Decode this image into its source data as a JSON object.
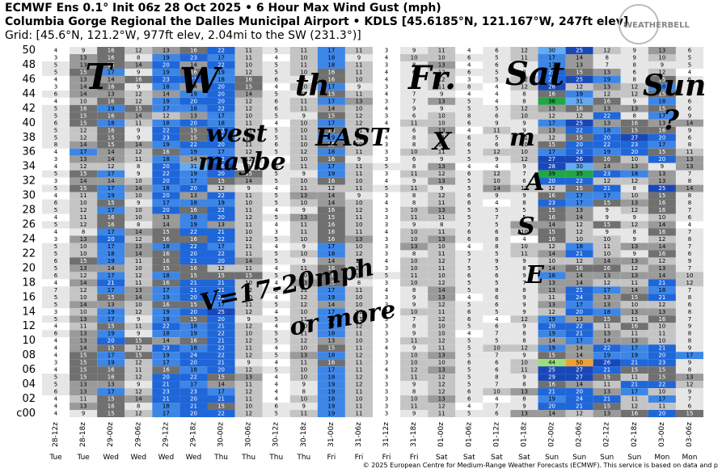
{
  "chart_data": {
    "type": "heatmap",
    "title": "ECMWF Ens 0.1° Init 06z 28 Oct 2025 • 6 Hour Max Wind Gust (mph)",
    "location": "Columbia Gorge Regional the Dalles Municipal Airport • KDLS [45.6185°N, 121.167°W, 247ft elev]",
    "grid_info": "Grid: [45.6°N, 121.2°W, 977ft elev, 2.04mi to the SW (231.3°)]",
    "logo": "WEATHERBELL",
    "footer": "© 2025 European Centre for Medium-Range Weather Forecasts (ECMWF). This service is based on data and p",
    "x": [
      "28-12z",
      "28-18z",
      "29-00z",
      "29-06z",
      "29-12z",
      "29-18z",
      "30-00z",
      "30-06z",
      "30-12z",
      "30-18z",
      "31-00z",
      "31-06z",
      "31-12z",
      "31-18z",
      "01-00z",
      "01-06z",
      "01-12z",
      "01-18z",
      "02-00z",
      "02-06z",
      "02-12z",
      "02-18z",
      "03-00z",
      "03-06z"
    ],
    "x_days": [
      "Tue",
      "Tue",
      "Wed",
      "Wed",
      "Wed",
      "Wed",
      "Thu",
      "Thu",
      "Thu",
      "Thu",
      "Fri",
      "Fri",
      "Fri",
      "Fri",
      "Sat",
      "Sat",
      "Sat",
      "Sat",
      "Sun",
      "Sun",
      "Sun",
      "Sun",
      "Mon",
      "Mon"
    ],
    "y": [
      "50",
      null,
      "48",
      null,
      "46",
      null,
      "44",
      null,
      "42",
      null,
      "40",
      null,
      "38",
      null,
      "36",
      null,
      "34",
      null,
      "32",
      null,
      "30",
      null,
      "28",
      null,
      "26",
      null,
      "24",
      null,
      "22",
      null,
      "20",
      null,
      "18",
      null,
      "16",
      null,
      "14",
      null,
      "12",
      null,
      "10",
      null,
      "08",
      null,
      "06",
      null,
      "04",
      null,
      "02",
      null,
      "c00"
    ],
    "colorscale": [
      {
        "min": 0,
        "color": "#ffffff",
        "text": "#000000"
      },
      {
        "min": 5,
        "color": "#e6e6e6",
        "text": "#000000"
      },
      {
        "min": 10,
        "color": "#c4c4c4",
        "text": "#000000"
      },
      {
        "min": 13,
        "color": "#9a9a9a",
        "text": "#000000"
      },
      {
        "min": 15,
        "color": "#707070",
        "text": "#ffffff"
      },
      {
        "min": 17,
        "color": "#3d86e6",
        "text": "#000000"
      },
      {
        "min": 20,
        "color": "#1f66d9",
        "text": "#ffffff"
      },
      {
        "min": 25,
        "color": "#1848b8",
        "text": "#ffffff"
      },
      {
        "min": 30,
        "color": "#66aaf0",
        "text": "#000000"
      },
      {
        "min": 35,
        "color": "#22a644",
        "text": "#000000"
      },
      {
        "min": 40,
        "color": "#99e07a",
        "text": "#000000"
      },
      {
        "min": 45,
        "color": "#f0e040",
        "text": "#000000"
      },
      {
        "min": 50,
        "color": "#f0a030",
        "text": "#000000"
      }
    ],
    "values": [
      [
        4,
        9,
        16,
        12,
        13,
        16,
        22,
        11,
        5,
        11,
        17,
        11,
        3,
        9,
        11,
        4,
        6,
        12,
        30,
        25,
        12,
        9,
        13,
        6
      ],
      [
        3,
        13,
        16,
        8,
        19,
        23,
        17,
        11,
        4,
        10,
        18,
        9,
        4,
        10,
        10,
        6,
        5,
        11,
        17,
        14,
        8,
        9,
        10,
        5
      ],
      [
        5,
        13,
        15,
        14,
        20,
        14,
        22,
        10,
        5,
        11,
        18,
        11,
        3,
        8,
        13,
        4,
        6,
        9,
        17,
        13,
        7,
        8,
        9,
        5
      ],
      [
        5,
        15,
        17,
        9,
        19,
        16,
        19,
        12,
        5,
        10,
        16,
        11,
        4,
        6,
        12,
        6,
        5,
        8,
        22,
        15,
        13,
        6,
        12,
        4
      ],
      [
        4,
        13,
        14,
        16,
        23,
        21,
        18,
        16,
        6,
        9,
        16,
        10,
        4,
        8,
        12,
        3,
        5,
        12,
        24,
        25,
        19,
        8,
        15,
        6
      ],
      [
        3,
        14,
        16,
        9,
        18,
        14,
        20,
        15,
        4,
        10,
        17,
        9,
        3,
        6,
        11,
        8,
        4,
        12,
        28,
        12,
        13,
        12,
        18,
        7
      ],
      [
        6,
        14,
        13,
        12,
        14,
        19,
        20,
        14,
        5,
        9,
        15,
        11,
        4,
        7,
        9,
        4,
        4,
        8,
        16,
        19,
        12,
        12,
        15,
        9
      ],
      [
        4,
        10,
        16,
        12,
        19,
        20,
        20,
        12,
        6,
        11,
        17,
        13,
        3,
        7,
        13,
        5,
        4,
        8,
        36,
        31,
        16,
        9,
        18,
        6
      ],
      [
        5,
        16,
        19,
        15,
        17,
        18,
        22,
        12,
        6,
        11,
        14,
        10,
        4,
        9,
        9,
        5,
        5,
        12,
        13,
        16,
        13,
        13,
        15,
        6
      ],
      [
        5,
        15,
        16,
        14,
        12,
        13,
        17,
        10,
        5,
        9,
        15,
        12,
        3,
        6,
        10,
        8,
        6,
        10,
        12,
        12,
        22,
        8,
        17,
        9
      ],
      [
        6,
        15,
        18,
        11,
        18,
        20,
        18,
        11,
        4,
        10,
        17,
        12,
        4,
        11,
        10,
        6,
        9,
        9,
        17,
        25,
        13,
        16,
        13,
        14
      ],
      [
        5,
        12,
        16,
        9,
        22,
        15,
        22,
        11,
        5,
        10,
        16,
        11,
        3,
        6,
        13,
        4,
        11,
        9,
        13,
        22,
        18,
        15,
        16,
        9
      ],
      [
        5,
        12,
        15,
        9,
        23,
        15,
        21,
        10,
        5,
        11,
        19,
        12,
        4,
        8,
        11,
        6,
        5,
        11,
        12,
        15,
        20,
        27,
        20,
        6
      ],
      [
        8,
        14,
        15,
        14,
        19,
        22,
        20,
        11,
        6,
        10,
        15,
        10,
        3,
        8,
        12,
        6,
        6,
        10,
        15,
        20,
        22,
        23,
        17,
        8
      ],
      [
        4,
        17,
        14,
        12,
        16,
        19,
        17,
        12,
        5,
        12,
        18,
        11,
        3,
        10,
        11,
        5,
        12,
        10,
        17,
        23,
        19,
        20,
        15,
        11
      ],
      [
        3,
        13,
        14,
        11,
        18,
        14,
        22,
        12,
        4,
        10,
        16,
        9,
        3,
        6,
        9,
        5,
        9,
        12,
        27,
        26,
        16,
        10,
        20,
        13
      ],
      [
        4,
        12,
        12,
        8,
        20,
        31,
        26,
        9,
        6,
        11,
        17,
        11,
        5,
        8,
        13,
        4,
        4,
        9,
        28,
        30,
        14,
        13,
        9,
        13
      ],
      [
        5,
        15,
        17,
        9,
        22,
        19,
        20,
        15,
        5,
        9,
        19,
        11,
        3,
        11,
        12,
        6,
        12,
        7,
        39,
        35,
        23,
        18,
        13,
        7
      ],
      [
        3,
        14,
        14,
        10,
        20,
        17,
        15,
        14,
        5,
        10,
        16,
        10,
        4,
        9,
        13,
        5,
        10,
        6,
        20,
        22,
        12,
        12,
        13,
        8
      ],
      [
        5,
        15,
        17,
        14,
        18,
        20,
        12,
        9,
        4,
        11,
        12,
        11,
        5,
        11,
        9,
        5,
        14,
        12,
        12,
        15,
        21,
        8,
        25,
        14
      ],
      [
        4,
        11,
        19,
        10,
        20,
        13,
        22,
        11,
        5,
        13,
        14,
        9,
        3,
        8,
        12,
        6,
        9,
        9,
        16,
        17,
        17,
        10,
        15,
        8
      ],
      [
        6,
        10,
        15,
        9,
        17,
        18,
        19,
        10,
        5,
        10,
        14,
        10,
        4,
        8,
        11,
        6,
        4,
        8,
        23,
        17,
        15,
        13,
        16,
        8
      ],
      [
        5,
        12,
        17,
        10,
        20,
        16,
        22,
        11,
        4,
        9,
        16,
        12,
        3,
        10,
        13,
        5,
        5,
        5,
        15,
        13,
        9,
        12,
        16,
        7
      ],
      [
        4,
        11,
        16,
        10,
        13,
        18,
        20,
        12,
        5,
        13,
        15,
        11,
        3,
        11,
        11,
        5,
        7,
        5,
        16,
        14,
        9,
        9,
        10,
        6
      ],
      [
        5,
        12,
        16,
        8,
        14,
        19,
        13,
        11,
        4,
        11,
        16,
        10,
        3,
        9,
        8,
        7,
        5,
        13,
        14,
        12,
        15,
        12,
        14,
        4
      ],
      [
        4,
        8,
        17,
        14,
        15,
        22,
        21,
        10,
        3,
        11,
        16,
        11,
        4,
        10,
        11,
        6,
        6,
        10,
        15,
        12,
        9,
        8,
        16,
        7
      ],
      [
        3,
        13,
        20,
        12,
        16,
        16,
        22,
        12,
        5,
        10,
        16,
        13,
        3,
        10,
        13,
        6,
        8,
        4,
        16,
        10,
        10,
        9,
        12,
        8
      ],
      [
        5,
        10,
        17,
        13,
        18,
        22,
        17,
        11,
        4,
        9,
        17,
        10,
        3,
        13,
        10,
        4,
        8,
        10,
        12,
        18,
        11,
        13,
        14,
        7
      ],
      [
        5,
        10,
        18,
        14,
        16,
        20,
        22,
        11,
        5,
        10,
        18,
        12,
        3,
        8,
        11,
        5,
        5,
        11,
        14,
        21,
        10,
        9,
        16,
        6
      ],
      [
        6,
        15,
        19,
        11,
        16,
        21,
        20,
        14,
        5,
        9,
        14,
        12,
        4,
        10,
        12,
        7,
        9,
        9,
        10,
        12,
        14,
        13,
        12,
        9
      ],
      [
        5,
        13,
        14,
        10,
        15,
        16,
        12,
        11,
        4,
        11,
        16,
        10,
        3,
        10,
        11,
        5,
        5,
        8,
        14,
        16,
        16,
        12,
        13,
        7
      ],
      [
        6,
        12,
        17,
        12,
        18,
        15,
        15,
        15,
        5,
        10,
        16,
        12,
        5,
        11,
        10,
        6,
        6,
        9,
        18,
        14,
        13,
        13,
        14,
        10
      ],
      [
        4,
        14,
        21,
        11,
        16,
        21,
        21,
        10,
        4,
        13,
        15,
        8,
        3,
        10,
        12,
        5,
        5,
        7,
        13,
        14,
        12,
        11,
        21,
        12
      ],
      [
        7,
        12,
        17,
        13,
        17,
        21,
        21,
        12,
        5,
        11,
        17,
        11,
        4,
        8,
        14,
        5,
        8,
        8,
        13,
        21,
        17,
        14,
        18,
        7
      ],
      [
        5,
        10,
        15,
        14,
        19,
        20,
        22,
        10,
        4,
        12,
        19,
        10,
        3,
        9,
        13,
        4,
        6,
        9,
        11,
        24,
        13,
        15,
        21,
        8
      ],
      [
        5,
        14,
        13,
        10,
        16,
        15,
        17,
        11,
        5,
        12,
        14,
        10,
        3,
        9,
        12,
        5,
        6,
        9,
        13,
        17,
        13,
        10,
        12,
        6
      ],
      [
        3,
        10,
        19,
        12,
        19,
        20,
        25,
        12,
        4,
        10,
        17,
        12,
        4,
        10,
        11,
        6,
        5,
        9,
        12,
        20,
        18,
        13,
        13,
        8
      ],
      [
        5,
        13,
        17,
        9,
        18,
        15,
        20,
        9,
        5,
        11,
        19,
        11,
        3,
        7,
        12,
        6,
        4,
        12,
        19,
        13,
        15,
        11,
        16,
        7
      ],
      [
        4,
        11,
        15,
        11,
        22,
        18,
        21,
        12,
        4,
        10,
        17,
        12,
        3,
        8,
        10,
        5,
        6,
        9,
        20,
        22,
        11,
        16,
        10,
        9
      ],
      [
        6,
        13,
        19,
        9,
        18,
        19,
        22,
        10,
        5,
        11,
        18,
        11,
        3,
        9,
        10,
        4,
        7,
        8,
        19,
        21,
        13,
        11,
        11,
        8
      ],
      [
        4,
        13,
        20,
        15,
        14,
        16,
        21,
        12,
        5,
        12,
        13,
        10,
        3,
        11,
        12,
        5,
        5,
        8,
        14,
        17,
        14,
        13,
        10,
        8
      ],
      [
        4,
        14,
        15,
        12,
        23,
        18,
        22,
        11,
        4,
        10,
        15,
        11,
        4,
        9,
        11,
        5,
        10,
        12,
        19,
        14,
        22,
        17,
        21,
        9
      ],
      [
        4,
        15,
        17,
        15,
        19,
        24,
        22,
        12,
        5,
        13,
        18,
        12,
        3,
        10,
        13,
        5,
        7,
        9,
        15,
        14,
        19,
        19,
        20,
        17
      ],
      [
        3,
        15,
        19,
        12,
        17,
        20,
        21,
        9,
        4,
        11,
        16,
        11,
        3,
        10,
        10,
        6,
        6,
        10,
        44,
        50,
        26,
        21,
        23,
        9
      ],
      [
        4,
        15,
        16,
        11,
        16,
        18,
        20,
        12,
        5,
        10,
        17,
        11,
        4,
        12,
        13,
        5,
        6,
        11,
        25,
        27,
        21,
        15,
        15,
        8
      ],
      [
        5,
        15,
        16,
        12,
        20,
        22,
        15,
        13,
        4,
        10,
        18,
        12,
        3,
        11,
        12,
        5,
        8,
        9,
        29,
        27,
        15,
        11,
        15,
        13
      ],
      [
        5,
        13,
        13,
        9,
        21,
        17,
        14,
        11,
        4,
        9,
        19,
        12,
        3,
        9,
        12,
        5,
        7,
        8,
        16,
        14,
        11,
        21,
        22,
        12
      ],
      [
        6,
        13,
        17,
        12,
        23,
        23,
        17,
        12,
        4,
        8,
        19,
        11,
        3,
        8,
        12,
        6,
        10,
        13,
        21,
        20,
        13,
        17,
        10,
        9
      ],
      [
        4,
        11,
        15,
        14,
        21,
        20,
        21,
        11,
        4,
        10,
        18,
        10,
        3,
        10,
        13,
        6,
        4,
        8,
        19,
        24,
        21,
        11,
        17,
        7
      ],
      [
        4,
        13,
        16,
        8,
        18,
        21,
        15,
        10,
        6,
        9,
        19,
        11,
        3,
        11,
        12,
        4,
        7,
        9,
        20,
        21,
        15,
        12,
        11,
        6
      ],
      [
        4,
        9,
        15,
        12,
        17,
        20,
        22,
        12,
        5,
        11,
        19,
        11,
        3,
        9,
        11,
        5,
        6,
        13,
        14,
        12,
        13,
        16,
        20,
        15
      ]
    ],
    "annotations": [
      "T",
      "W",
      "th",
      "Fr.",
      "Sat",
      "Sun",
      "west",
      "maybe",
      "EAST",
      "X",
      "?",
      "V=17-20mph",
      "or more",
      "m",
      "A",
      "S",
      "E"
    ]
  }
}
